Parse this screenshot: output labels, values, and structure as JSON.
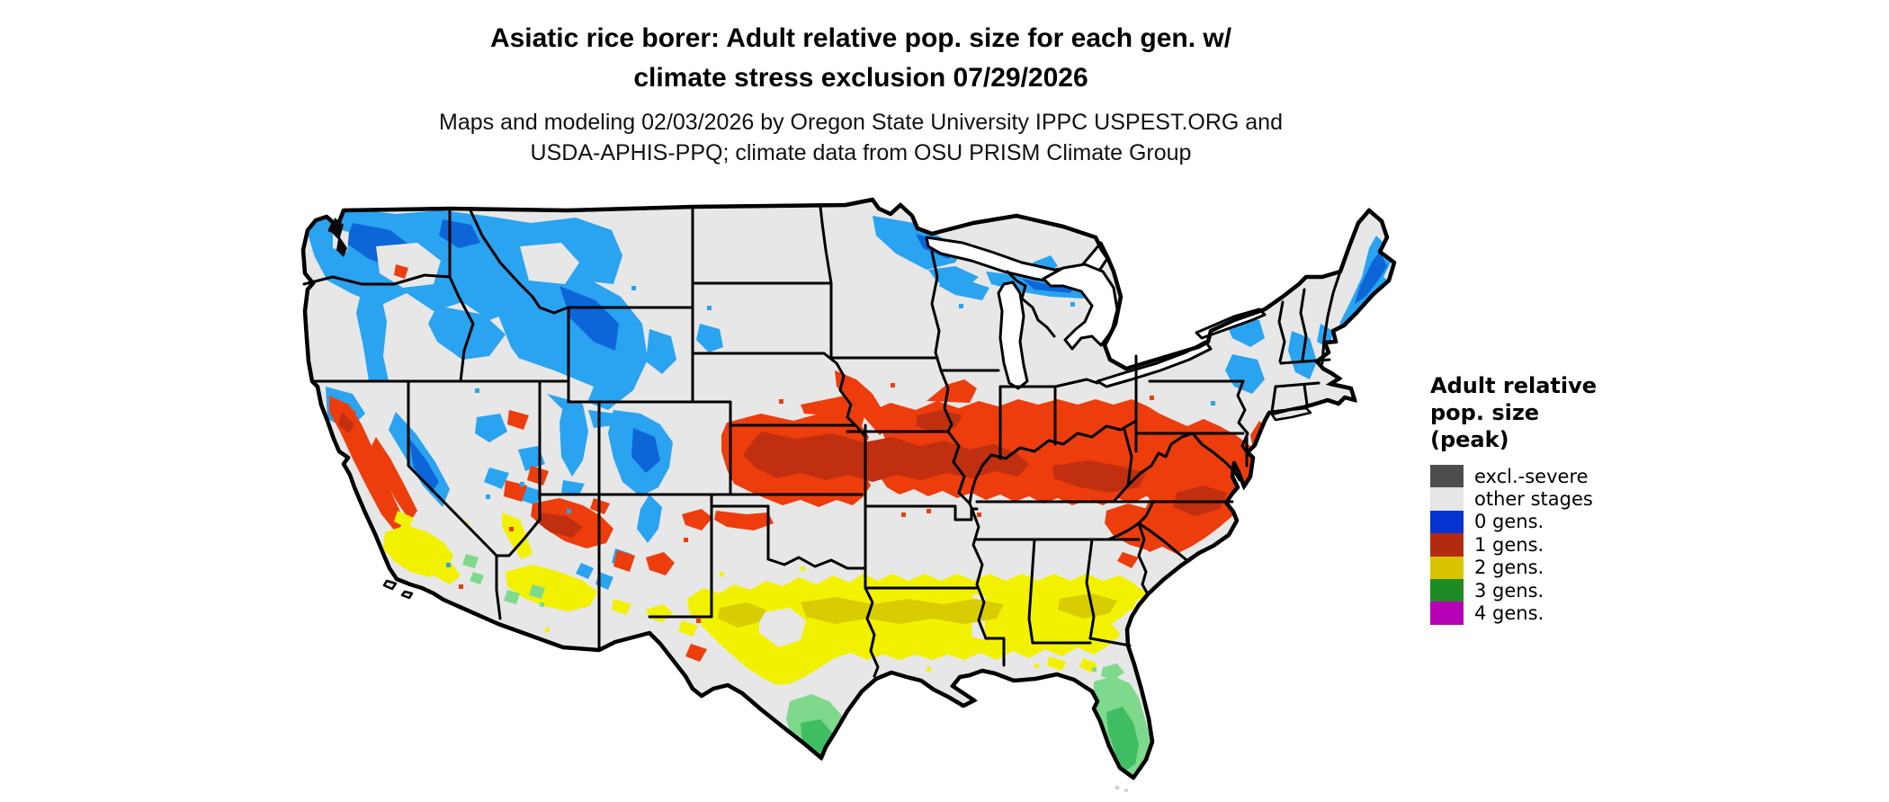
{
  "header": {
    "title_line1": "Asiatic rice borer: Adult relative pop. size for each gen. w/",
    "title_line2": "climate stress exclusion 07/29/2026",
    "subtitle_line1": "Maps and modeling 02/03/2026 by Oregon State University IPPC USPEST.ORG and",
    "subtitle_line2": "USDA-APHIS-PPQ; climate data from OSU PRISM Climate Group"
  },
  "legend": {
    "title_lines": [
      "Adult relative",
      "pop. size",
      "(peak)"
    ],
    "entries": [
      {
        "label": "excl.-severe",
        "color": "#4d4d4d"
      },
      {
        "label": "other stages",
        "color": "#e6e6e6"
      },
      {
        "label": "0 gens.",
        "color": "#0533d1"
      },
      {
        "label": "1 gens.",
        "color": "#b22b11"
      },
      {
        "label": "2 gens.",
        "color": "#d9c400"
      },
      {
        "label": "3 gens.",
        "color": "#1f8b24"
      },
      {
        "label": "4 gens.",
        "color": "#b500b5"
      }
    ]
  },
  "map": {
    "region": "contiguous-united-states",
    "palette": {
      "base": "#e7e7e7",
      "border": "#000000",
      "water": "#ffffff",
      "blue": "#2aa3f0",
      "blue_dark": "#0c66d8",
      "red": "#ed3d0d",
      "red_dark": "#c02f10",
      "yellow": "#f2f200",
      "yellow_dark": "#d8cd00",
      "green": "#7ed98c",
      "green_dark": "#3fbd63"
    }
  }
}
